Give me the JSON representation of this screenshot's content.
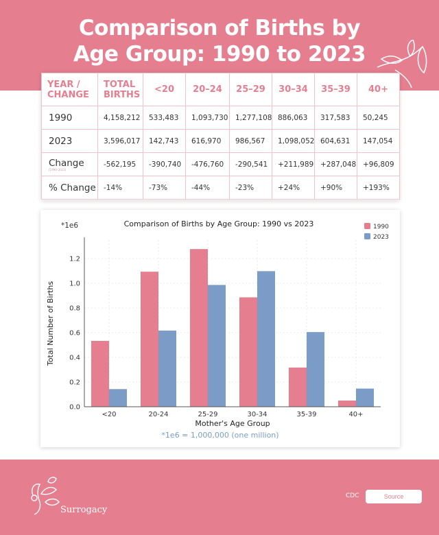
{
  "page": {
    "title_line1": "Comparison of Births by",
    "title_line2": "Age Group: 1990 to 2023"
  },
  "colors": {
    "pink": "#e57f90",
    "blue": "#7a9cc6"
  },
  "table": {
    "headers": [
      "YEAR /\nCHANGE",
      "TOTAL\nBIRTHS",
      "<20",
      "20–24",
      "25–29",
      "30–34",
      "35–39",
      "40+"
    ],
    "change_sub": "(1990–2023)",
    "rows": [
      [
        "1990",
        "4,158,212",
        "533,483",
        "1,093,730",
        "1,277,108",
        "886,063",
        "317,583",
        "50,245"
      ],
      [
        "2023",
        "3,596,017",
        "142,743",
        "616,970",
        "986,567",
        "1,098,052",
        "604,631",
        "147,054"
      ],
      [
        "Change",
        "-562,195",
        "-390,740",
        "-476,760",
        "-290,541",
        "+211,989",
        "+287,048",
        "+96,809"
      ],
      [
        "% Change",
        "-14%",
        "-73%",
        "-44%",
        "-23%",
        "+24%",
        "+90%",
        "+193%"
      ]
    ]
  },
  "chart_data": {
    "type": "bar",
    "title": "Comparison of Births by Age Group: 1990 vs 2023",
    "xlabel": "Mother's Age Group",
    "ylabel": "Total Number of Births",
    "scale_label": "*1e6",
    "categories": [
      "<20",
      "20-24",
      "25-29",
      "30-34",
      "35-39",
      "40+"
    ],
    "series": [
      {
        "name": "1990",
        "color": "#e57f90",
        "values": [
          533483,
          1093730,
          1277108,
          886063,
          317583,
          50245
        ]
      },
      {
        "name": "2023",
        "color": "#7a9cc6",
        "values": [
          142743,
          616970,
          986567,
          1098052,
          604631,
          147054
        ]
      }
    ],
    "ylim": [
      0,
      1350000
    ],
    "yticks": [
      0.0,
      0.2,
      0.4,
      0.6,
      0.8,
      1.0,
      1.2
    ],
    "ytick_labels": [
      "0.0",
      "0.2",
      "0.4",
      "0.6",
      "0.8",
      "1.0",
      "1.2"
    ],
    "grid": true,
    "legend": "top-right",
    "footnote": "*1e6 = 1,000,000 (one million)"
  },
  "footer": {
    "brand": "Surrogacy",
    "cdc": "CDC",
    "source_label": "Source"
  }
}
